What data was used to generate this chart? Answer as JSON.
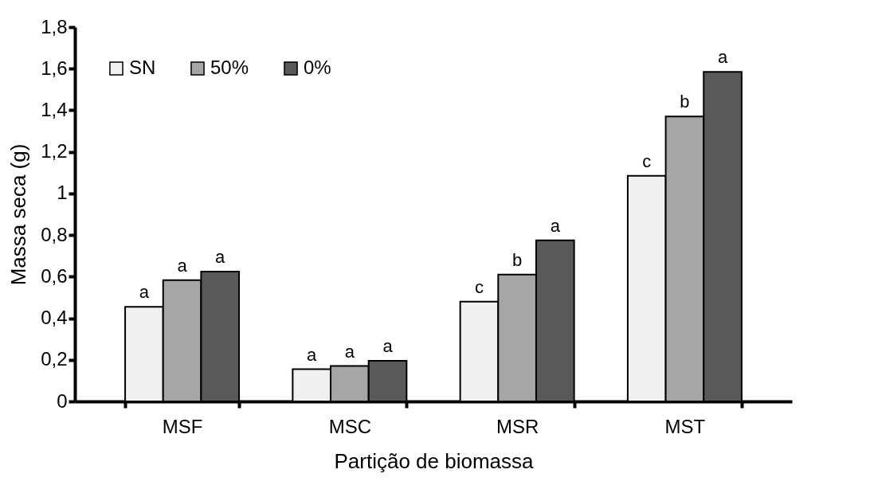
{
  "chart_data": {
    "type": "bar",
    "xlabel": "Partição de biomassa",
    "ylabel": "Massa seca (g)",
    "categories": [
      "MSF",
      "MSC",
      "MSR",
      "MST"
    ],
    "series": [
      {
        "name": "SN",
        "color": "#f0f0f0",
        "values": [
          0.455,
          0.155,
          0.48,
          1.085
        ],
        "value_labels": [
          "a",
          "a",
          "c",
          "c"
        ]
      },
      {
        "name": "50%",
        "color": "#a6a6a6",
        "values": [
          0.583,
          0.17,
          0.61,
          1.37
        ],
        "value_labels": [
          "a",
          "a",
          "b",
          "b"
        ]
      },
      {
        "name": "0%",
        "color": "#595959",
        "values": [
          0.624,
          0.195,
          0.775,
          1.585
        ],
        "value_labels": [
          "a",
          "a",
          "a",
          "a"
        ]
      }
    ],
    "ylim": [
      0,
      1.8
    ],
    "yticks": [
      0,
      {
        "value": 0.2,
        "label": "0,2"
      },
      {
        "value": 0.4,
        "label": "0,4"
      },
      {
        "value": 0.6,
        "label": "0,6"
      },
      {
        "value": 0.8,
        "label": "0,8"
      },
      1,
      {
        "value": 1.2,
        "label": "1,2"
      },
      {
        "value": 1.4,
        "label": "1,4"
      },
      {
        "value": 1.6,
        "label": "1,6"
      },
      {
        "value": 1.8,
        "label": "1,8"
      }
    ],
    "grid": false,
    "legend": "top left"
  }
}
